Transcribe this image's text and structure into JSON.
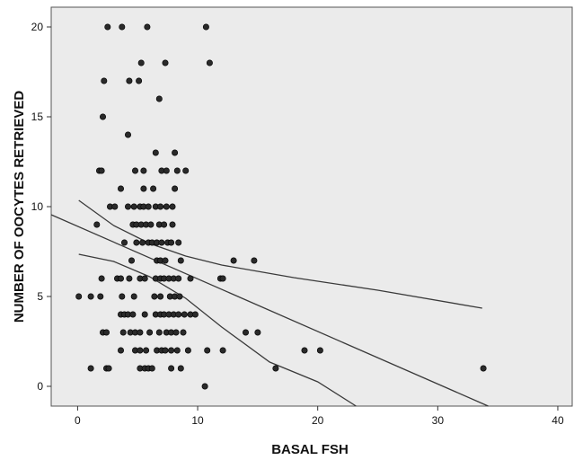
{
  "chart_data": {
    "type": "scatter",
    "title": "",
    "xlabel": "BASAL FSH",
    "ylabel": "NUMBER OF OOCYTES RETRIEVED",
    "xlim": [
      -2.2,
      41.2
    ],
    "ylim": [
      -1.1,
      21.1
    ],
    "xticks": [
      0,
      10,
      20,
      30,
      40
    ],
    "yticks": [
      0,
      5,
      10,
      15,
      20
    ],
    "grid": false,
    "colors": {
      "plot_background": "#ebebeb",
      "points": "#2a2a2a",
      "lines": "#3a3a3a"
    },
    "points": [
      [
        2.5,
        20
      ],
      [
        3.7,
        20
      ],
      [
        5.8,
        20
      ],
      [
        10.7,
        20
      ],
      [
        5.3,
        18
      ],
      [
        7.3,
        18
      ],
      [
        11.0,
        18
      ],
      [
        2.2,
        17
      ],
      [
        4.3,
        17
      ],
      [
        5.1,
        17
      ],
      [
        6.8,
        16
      ],
      [
        2.1,
        15
      ],
      [
        4.2,
        14
      ],
      [
        6.5,
        13
      ],
      [
        8.1,
        13
      ],
      [
        1.8,
        12
      ],
      [
        2.0,
        12
      ],
      [
        4.8,
        12
      ],
      [
        5.5,
        12
      ],
      [
        7.0,
        12
      ],
      [
        7.4,
        12
      ],
      [
        8.3,
        12
      ],
      [
        9.0,
        12
      ],
      [
        3.6,
        11
      ],
      [
        5.5,
        11
      ],
      [
        6.3,
        11
      ],
      [
        8.1,
        11
      ],
      [
        2.7,
        10
      ],
      [
        3.1,
        10
      ],
      [
        4.2,
        10
      ],
      [
        4.7,
        10
      ],
      [
        5.2,
        10
      ],
      [
        5.5,
        10
      ],
      [
        5.9,
        10
      ],
      [
        6.5,
        10
      ],
      [
        6.9,
        10
      ],
      [
        7.4,
        10
      ],
      [
        7.9,
        10
      ],
      [
        1.6,
        9
      ],
      [
        4.6,
        9
      ],
      [
        4.9,
        9
      ],
      [
        5.3,
        9
      ],
      [
        5.7,
        9
      ],
      [
        6.1,
        9
      ],
      [
        6.8,
        9
      ],
      [
        7.2,
        9
      ],
      [
        7.9,
        9
      ],
      [
        3.9,
        8
      ],
      [
        4.9,
        8
      ],
      [
        5.4,
        8
      ],
      [
        5.9,
        8
      ],
      [
        6.2,
        8
      ],
      [
        6.6,
        8
      ],
      [
        7.0,
        8
      ],
      [
        7.5,
        8
      ],
      [
        7.8,
        8
      ],
      [
        8.4,
        8
      ],
      [
        4.5,
        7
      ],
      [
        6.6,
        7
      ],
      [
        6.9,
        7
      ],
      [
        7.3,
        7
      ],
      [
        8.6,
        7
      ],
      [
        13.0,
        7
      ],
      [
        14.7,
        7
      ],
      [
        2.0,
        6
      ],
      [
        3.3,
        6
      ],
      [
        3.6,
        6
      ],
      [
        4.3,
        6
      ],
      [
        5.2,
        6
      ],
      [
        5.6,
        6
      ],
      [
        6.5,
        6
      ],
      [
        6.9,
        6
      ],
      [
        7.2,
        6
      ],
      [
        7.6,
        6
      ],
      [
        8.0,
        6
      ],
      [
        8.4,
        6
      ],
      [
        9.4,
        6
      ],
      [
        11.9,
        6
      ],
      [
        12.1,
        6
      ],
      [
        0.1,
        5
      ],
      [
        1.1,
        5
      ],
      [
        1.9,
        5
      ],
      [
        3.7,
        5
      ],
      [
        4.7,
        5
      ],
      [
        6.4,
        5
      ],
      [
        6.9,
        5
      ],
      [
        7.7,
        5
      ],
      [
        8.1,
        5
      ],
      [
        8.5,
        5
      ],
      [
        3.6,
        4
      ],
      [
        3.9,
        4
      ],
      [
        4.2,
        4
      ],
      [
        4.6,
        4
      ],
      [
        5.6,
        4
      ],
      [
        6.5,
        4
      ],
      [
        6.9,
        4
      ],
      [
        7.2,
        4
      ],
      [
        7.6,
        4
      ],
      [
        8.0,
        4
      ],
      [
        8.4,
        4
      ],
      [
        8.9,
        4
      ],
      [
        9.4,
        4
      ],
      [
        9.8,
        4
      ],
      [
        2.1,
        3
      ],
      [
        2.4,
        3
      ],
      [
        3.8,
        3
      ],
      [
        4.4,
        3
      ],
      [
        4.8,
        3
      ],
      [
        5.2,
        3
      ],
      [
        6.0,
        3
      ],
      [
        6.8,
        3
      ],
      [
        7.4,
        3
      ],
      [
        7.8,
        3
      ],
      [
        8.2,
        3
      ],
      [
        8.8,
        3
      ],
      [
        14.0,
        3
      ],
      [
        15.0,
        3
      ],
      [
        3.6,
        2
      ],
      [
        4.8,
        2
      ],
      [
        5.2,
        2
      ],
      [
        5.7,
        2
      ],
      [
        6.6,
        2
      ],
      [
        7.0,
        2
      ],
      [
        7.3,
        2
      ],
      [
        7.8,
        2
      ],
      [
        8.3,
        2
      ],
      [
        9.2,
        2
      ],
      [
        10.8,
        2
      ],
      [
        12.1,
        2
      ],
      [
        18.9,
        2
      ],
      [
        20.2,
        2
      ],
      [
        1.1,
        1
      ],
      [
        2.4,
        1
      ],
      [
        2.6,
        1
      ],
      [
        5.2,
        1
      ],
      [
        5.6,
        1
      ],
      [
        5.9,
        1
      ],
      [
        6.2,
        1
      ],
      [
        7.8,
        1
      ],
      [
        8.6,
        1
      ],
      [
        16.5,
        1
      ],
      [
        33.8,
        1
      ],
      [
        10.6,
        0
      ]
    ],
    "lines": [
      {
        "points": [
          [
            -2.2,
            9.55
          ],
          [
            34.2,
            -1.1
          ]
        ]
      },
      {
        "points": [
          [
            0.1,
            10.35
          ],
          [
            3.0,
            8.95
          ],
          [
            6.0,
            7.95
          ],
          [
            9.0,
            7.25
          ],
          [
            12.0,
            6.75
          ],
          [
            18.0,
            6.05
          ],
          [
            25.0,
            5.35
          ],
          [
            33.7,
            4.35
          ]
        ]
      },
      {
        "points": [
          [
            0.1,
            7.35
          ],
          [
            3.0,
            6.95
          ],
          [
            6.0,
            6.1
          ],
          [
            9.0,
            4.9
          ],
          [
            12.0,
            3.3
          ],
          [
            16.0,
            1.35
          ],
          [
            20.0,
            0.25
          ],
          [
            23.2,
            -1.1
          ]
        ]
      }
    ]
  }
}
